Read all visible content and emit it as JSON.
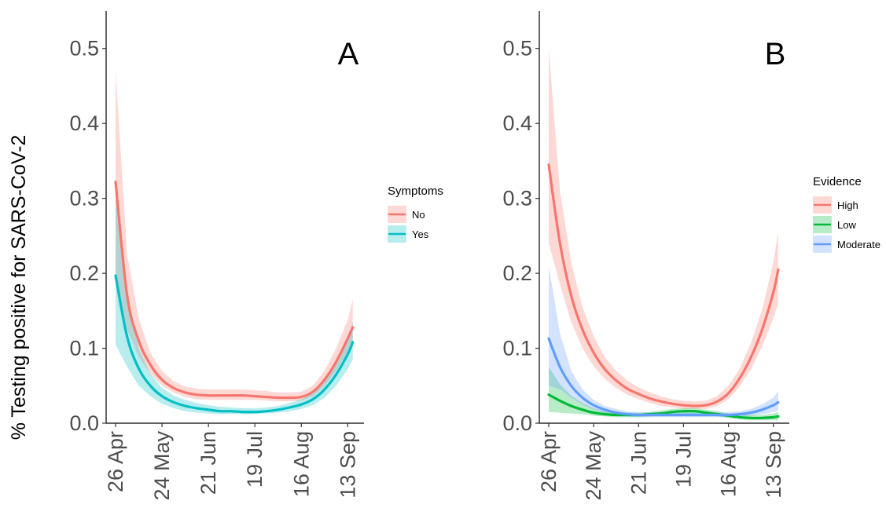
{
  "y_axis_label": "% Testing positive for SARS-CoV-2",
  "chart_data": [
    {
      "type": "line",
      "panel": "A",
      "ylabel": "% Testing positive for SARS-CoV-2",
      "xlabel": "",
      "x_ticks": [
        "26 Apr",
        "24 May",
        "21 Jun",
        "19 Jul",
        "16 Aug",
        "13 Sep"
      ],
      "x_tick_dates": [
        "2020-04-26",
        "2020-05-24",
        "2020-06-21",
        "2020-07-19",
        "2020-08-16",
        "2020-09-13"
      ],
      "xlim": [
        "2020-04-26",
        "2020-09-19"
      ],
      "ylim": [
        0,
        0.55
      ],
      "y_ticks": [
        "0.0",
        "0.1",
        "0.2",
        "0.3",
        "0.4",
        "0.5"
      ],
      "y_tick_values": [
        0,
        0.1,
        0.2,
        0.3,
        0.4,
        0.5
      ],
      "grid": false,
      "legend": {
        "title": "Symptoms",
        "position": "right"
      },
      "series": [
        {
          "name": "No",
          "color": "#F8766D",
          "band_color": "#F8766D",
          "x": [
            "2020-04-26",
            "2020-05-03",
            "2020-05-10",
            "2020-05-17",
            "2020-05-24",
            "2020-05-31",
            "2020-06-07",
            "2020-06-14",
            "2020-06-21",
            "2020-06-28",
            "2020-07-05",
            "2020-07-12",
            "2020-07-19",
            "2020-07-26",
            "2020-08-02",
            "2020-08-09",
            "2020-08-16",
            "2020-08-23",
            "2020-08-30",
            "2020-09-06",
            "2020-09-13",
            "2020-09-16"
          ],
          "y": [
            0.322,
            0.17,
            0.11,
            0.078,
            0.058,
            0.047,
            0.041,
            0.038,
            0.037,
            0.037,
            0.037,
            0.037,
            0.036,
            0.035,
            0.034,
            0.034,
            0.035,
            0.042,
            0.058,
            0.082,
            0.113,
            0.128
          ],
          "lower": [
            0.19,
            0.125,
            0.088,
            0.066,
            0.05,
            0.041,
            0.035,
            0.032,
            0.031,
            0.031,
            0.031,
            0.031,
            0.031,
            0.03,
            0.029,
            0.029,
            0.03,
            0.036,
            0.05,
            0.07,
            0.095,
            0.105
          ],
          "upper": [
            0.47,
            0.225,
            0.14,
            0.094,
            0.07,
            0.056,
            0.049,
            0.046,
            0.045,
            0.045,
            0.045,
            0.045,
            0.044,
            0.043,
            0.041,
            0.041,
            0.042,
            0.05,
            0.07,
            0.1,
            0.138,
            0.165
          ]
        },
        {
          "name": "Yes",
          "color": "#00BFC4",
          "band_color": "#00BFC4",
          "x": [
            "2020-04-26",
            "2020-05-03",
            "2020-05-10",
            "2020-05-17",
            "2020-05-24",
            "2020-05-31",
            "2020-06-07",
            "2020-06-14",
            "2020-06-21",
            "2020-06-28",
            "2020-07-05",
            "2020-07-12",
            "2020-07-19",
            "2020-07-26",
            "2020-08-02",
            "2020-08-09",
            "2020-08-16",
            "2020-08-23",
            "2020-08-30",
            "2020-09-06",
            "2020-09-13",
            "2020-09-16"
          ],
          "y": [
            0.197,
            0.115,
            0.073,
            0.05,
            0.036,
            0.028,
            0.023,
            0.02,
            0.018,
            0.016,
            0.016,
            0.015,
            0.015,
            0.016,
            0.018,
            0.021,
            0.025,
            0.032,
            0.045,
            0.065,
            0.092,
            0.108
          ],
          "lower": [
            0.105,
            0.075,
            0.05,
            0.036,
            0.026,
            0.02,
            0.016,
            0.014,
            0.013,
            0.012,
            0.012,
            0.012,
            0.012,
            0.013,
            0.014,
            0.016,
            0.019,
            0.024,
            0.034,
            0.05,
            0.072,
            0.085
          ],
          "upper": [
            0.33,
            0.17,
            0.1,
            0.066,
            0.047,
            0.037,
            0.031,
            0.027,
            0.024,
            0.022,
            0.021,
            0.02,
            0.02,
            0.021,
            0.023,
            0.027,
            0.032,
            0.041,
            0.057,
            0.082,
            0.114,
            0.135
          ]
        }
      ]
    },
    {
      "type": "line",
      "panel": "B",
      "ylabel": "% Testing positive for SARS-CoV-2",
      "xlabel": "",
      "x_ticks": [
        "26 Apr",
        "24 May",
        "21 Jun",
        "19 Jul",
        "16 Aug",
        "13 Sep"
      ],
      "x_tick_dates": [
        "2020-04-26",
        "2020-05-24",
        "2020-06-21",
        "2020-07-19",
        "2020-08-16",
        "2020-09-13"
      ],
      "xlim": [
        "2020-04-26",
        "2020-09-19"
      ],
      "ylim": [
        0,
        0.55
      ],
      "y_ticks": [
        "0.0",
        "0.1",
        "0.2",
        "0.3",
        "0.4",
        "0.5"
      ],
      "y_tick_values": [
        0,
        0.1,
        0.2,
        0.3,
        0.4,
        0.5
      ],
      "grid": false,
      "legend": {
        "title": "Evidence",
        "position": "right"
      },
      "series": [
        {
          "name": "High",
          "color": "#F8766D",
          "band_color": "#F8766D",
          "x": [
            "2020-04-26",
            "2020-05-03",
            "2020-05-10",
            "2020-05-17",
            "2020-05-24",
            "2020-05-31",
            "2020-06-07",
            "2020-06-14",
            "2020-06-21",
            "2020-06-28",
            "2020-07-05",
            "2020-07-12",
            "2020-07-19",
            "2020-07-26",
            "2020-08-02",
            "2020-08-09",
            "2020-08-16",
            "2020-08-23",
            "2020-08-30",
            "2020-09-06",
            "2020-09-13",
            "2020-09-16"
          ],
          "y": [
            0.345,
            0.24,
            0.17,
            0.125,
            0.094,
            0.072,
            0.057,
            0.046,
            0.039,
            0.033,
            0.029,
            0.026,
            0.024,
            0.023,
            0.024,
            0.029,
            0.04,
            0.06,
            0.088,
            0.125,
            0.175,
            0.205
          ],
          "lower": [
            0.24,
            0.185,
            0.135,
            0.1,
            0.076,
            0.059,
            0.047,
            0.038,
            0.032,
            0.027,
            0.023,
            0.021,
            0.019,
            0.019,
            0.019,
            0.023,
            0.032,
            0.049,
            0.072,
            0.102,
            0.14,
            0.16
          ],
          "upper": [
            0.5,
            0.31,
            0.215,
            0.155,
            0.116,
            0.088,
            0.07,
            0.057,
            0.048,
            0.041,
            0.036,
            0.032,
            0.03,
            0.029,
            0.03,
            0.036,
            0.05,
            0.073,
            0.107,
            0.152,
            0.215,
            0.255
          ]
        },
        {
          "name": "Low",
          "color": "#00BA38",
          "band_color": "#00BA38",
          "x": [
            "2020-04-26",
            "2020-05-03",
            "2020-05-10",
            "2020-05-17",
            "2020-05-24",
            "2020-05-31",
            "2020-06-07",
            "2020-06-14",
            "2020-06-21",
            "2020-06-28",
            "2020-07-05",
            "2020-07-12",
            "2020-07-19",
            "2020-07-26",
            "2020-08-02",
            "2020-08-09",
            "2020-08-16",
            "2020-08-23",
            "2020-08-30",
            "2020-09-06",
            "2020-09-13",
            "2020-09-16"
          ],
          "y": [
            0.038,
            0.03,
            0.023,
            0.018,
            0.014,
            0.012,
            0.011,
            0.011,
            0.011,
            0.012,
            0.013,
            0.015,
            0.016,
            0.016,
            0.014,
            0.012,
            0.01,
            0.008,
            0.007,
            0.007,
            0.008,
            0.009
          ],
          "lower": [
            0.015,
            0.014,
            0.013,
            0.012,
            0.01,
            0.009,
            0.008,
            0.008,
            0.008,
            0.009,
            0.01,
            0.011,
            0.012,
            0.012,
            0.011,
            0.009,
            0.007,
            0.005,
            0.004,
            0.004,
            0.004,
            0.004
          ],
          "upper": [
            0.075,
            0.052,
            0.037,
            0.027,
            0.02,
            0.016,
            0.014,
            0.014,
            0.014,
            0.015,
            0.017,
            0.019,
            0.02,
            0.02,
            0.018,
            0.016,
            0.013,
            0.011,
            0.011,
            0.011,
            0.013,
            0.015
          ]
        },
        {
          "name": "Moderate",
          "color": "#619CFF",
          "band_color": "#619CFF",
          "x": [
            "2020-04-26",
            "2020-05-03",
            "2020-05-10",
            "2020-05-17",
            "2020-05-24",
            "2020-05-31",
            "2020-06-07",
            "2020-06-14",
            "2020-06-21",
            "2020-06-28",
            "2020-07-05",
            "2020-07-12",
            "2020-07-19",
            "2020-07-26",
            "2020-08-02",
            "2020-08-09",
            "2020-08-16",
            "2020-08-23",
            "2020-08-30",
            "2020-09-06",
            "2020-09-13",
            "2020-09-16"
          ],
          "y": [
            0.113,
            0.075,
            0.05,
            0.034,
            0.024,
            0.018,
            0.014,
            0.012,
            0.011,
            0.011,
            0.011,
            0.011,
            0.011,
            0.011,
            0.011,
            0.011,
            0.011,
            0.012,
            0.014,
            0.018,
            0.024,
            0.028
          ],
          "lower": [
            0.05,
            0.045,
            0.034,
            0.025,
            0.018,
            0.013,
            0.01,
            0.009,
            0.008,
            0.008,
            0.008,
            0.008,
            0.008,
            0.008,
            0.008,
            0.008,
            0.008,
            0.009,
            0.01,
            0.012,
            0.015,
            0.017
          ],
          "upper": [
            0.21,
            0.12,
            0.07,
            0.045,
            0.031,
            0.023,
            0.019,
            0.016,
            0.015,
            0.015,
            0.015,
            0.015,
            0.015,
            0.015,
            0.015,
            0.015,
            0.015,
            0.016,
            0.019,
            0.025,
            0.034,
            0.043
          ]
        }
      ]
    }
  ]
}
